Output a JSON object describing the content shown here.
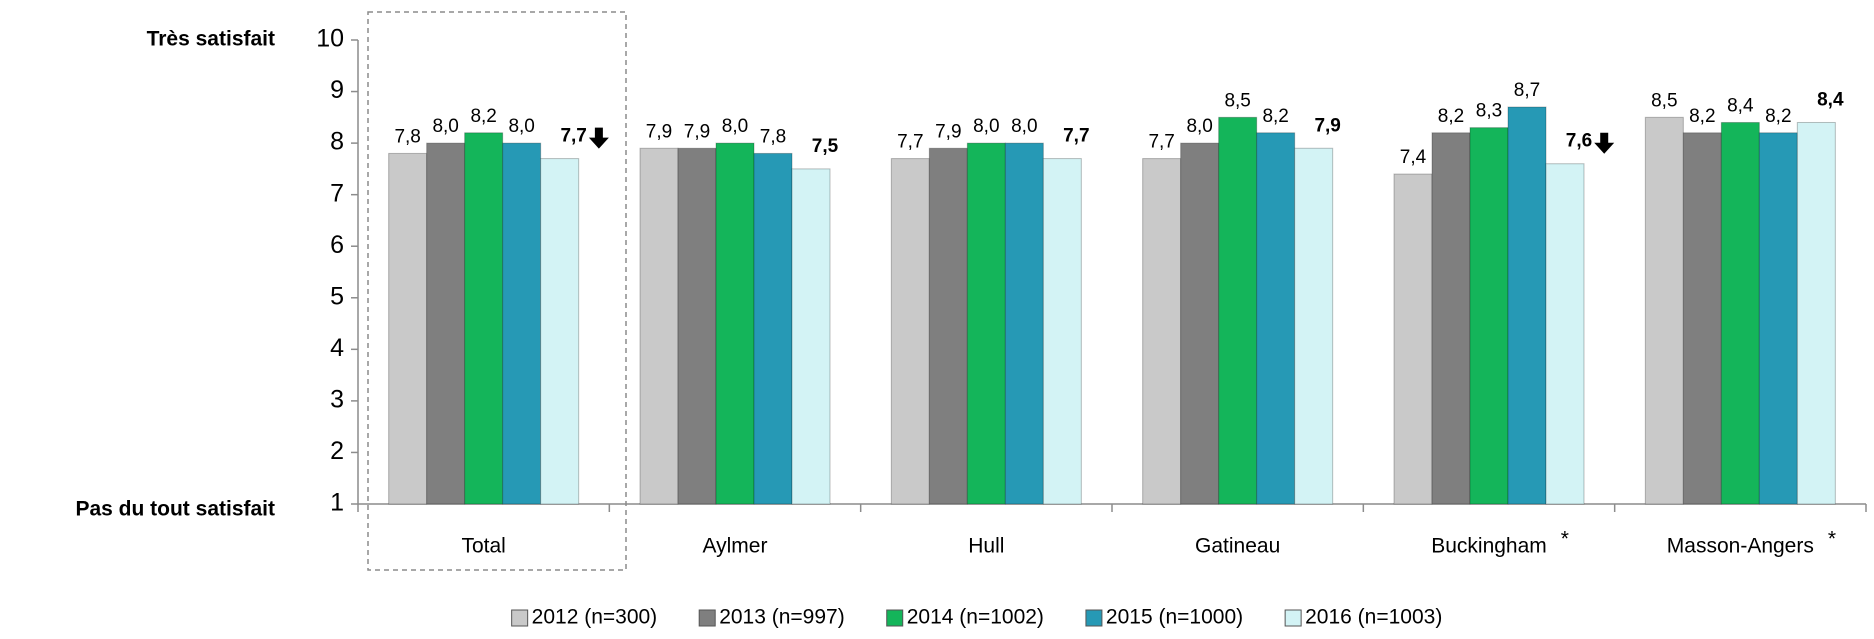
{
  "chart_data": {
    "type": "bar",
    "y_top_label": "Très satisfait",
    "y_bottom_label": "Pas du tout satisfait",
    "categories": [
      "Total",
      "Aylmer",
      "Hull",
      "Gatineau",
      "Buckingham",
      "Masson-Angers"
    ],
    "category_notes": [
      null,
      null,
      null,
      null,
      "*",
      "*"
    ],
    "ylim": [
      1,
      10
    ],
    "yticks": [
      1,
      2,
      3,
      4,
      5,
      6,
      7,
      8,
      9,
      10
    ],
    "series": [
      {
        "name": "2012 (n=300)",
        "color": "#c9c9c9",
        "values": [
          7.8,
          7.9,
          7.7,
          7.7,
          7.4,
          8.5
        ],
        "value_labels": [
          "7,8",
          "7,9",
          "7,7",
          "7,7",
          "7,4",
          "8,5"
        ],
        "label_colors": [
          "#000000",
          "#000000",
          "#000000",
          "#000000",
          "#8c8c8c",
          "#8c8c8c"
        ]
      },
      {
        "name": "2013 (n=997)",
        "color": "#7f7f7f",
        "values": [
          8.0,
          7.9,
          7.9,
          8.0,
          8.2,
          8.2
        ],
        "value_labels": [
          "8,0",
          "7,9",
          "7,9",
          "8,0",
          "8,2",
          "8,2"
        ]
      },
      {
        "name": "2014 (n=1002)",
        "color": "#14b55a",
        "values": [
          8.2,
          8.0,
          8.0,
          8.5,
          8.3,
          8.4
        ],
        "value_labels": [
          "8,2",
          "8,0",
          "8,0",
          "8,5",
          "8,3",
          "8,4"
        ]
      },
      {
        "name": "2015 (n=1000)",
        "color": "#2699b5",
        "values": [
          8.0,
          7.8,
          8.0,
          8.2,
          8.7,
          8.2
        ],
        "value_labels": [
          "8,0",
          "7,8",
          "8,0",
          "8,2",
          "8,7",
          "8,2"
        ]
      },
      {
        "name": "2016 (n=1003)",
        "color": "#d3f3f5",
        "values": [
          7.7,
          7.5,
          7.7,
          7.9,
          7.6,
          8.4
        ],
        "value_labels": [
          "7,7",
          "7,5",
          "7,7",
          "7,9",
          "7,6",
          "8,4"
        ],
        "label_weight": "bold",
        "label_colors": [
          "#000000",
          "#000000",
          "#000000",
          "#000000",
          "#000000",
          "#ff0000"
        ],
        "significant_decrease": [
          true,
          false,
          false,
          false,
          true,
          false
        ]
      }
    ]
  }
}
